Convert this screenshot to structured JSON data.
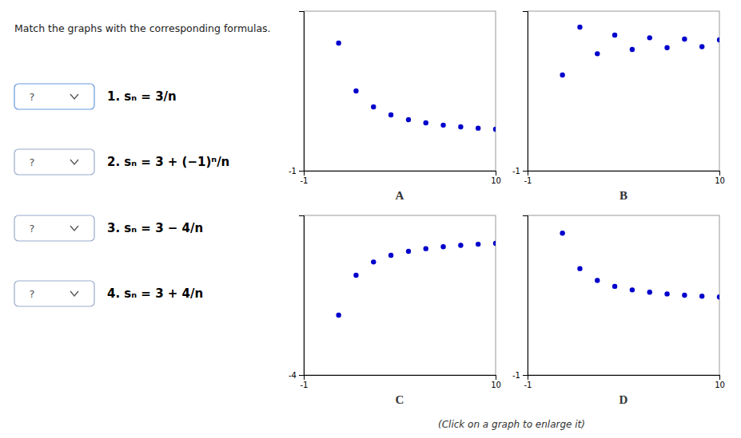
{
  "title": "Match the graphs with the corresponding formulas.",
  "annotations": [
    "1. sₙ = 3/n",
    "2. sₙ = 3 + (−1)ⁿ/n",
    "3. sₙ = 3 − 4/n",
    "4. sₙ = 3 + 4/n"
  ],
  "dropdown_text": "?",
  "caption": "(Click on a graph to enlarge it)",
  "chart_data": [
    {
      "type": "scatter",
      "title": "A",
      "x": [
        1,
        2,
        3,
        4,
        5,
        6,
        7,
        8,
        9,
        10
      ],
      "values": [
        3,
        1.5,
        1,
        0.75,
        0.6,
        0.5,
        0.42857142857142855,
        0.375,
        0.3333333333333333,
        0.3
      ],
      "color": "#0000cc",
      "xlim": [
        -1,
        10
      ],
      "xticks": [
        -1,
        10
      ],
      "ylim": [
        -1,
        4
      ],
      "yticks": [
        -1
      ]
    },
    {
      "type": "scatter",
      "title": "B",
      "x": [
        1,
        2,
        3,
        4,
        5,
        6,
        7,
        8,
        9,
        10
      ],
      "values": [
        2,
        3.5,
        2.6666666666666665,
        3.25,
        2.8,
        3.1666666666666665,
        2.857142857142857,
        3.125,
        2.888888888888889,
        3.1
      ],
      "color": "#0000cc",
      "xlim": [
        -1,
        10
      ],
      "xticks": [
        -1,
        10
      ],
      "ylim": [
        -1,
        4
      ],
      "yticks": [
        -1
      ]
    },
    {
      "type": "scatter",
      "title": "C",
      "x": [
        1,
        2,
        3,
        4,
        5,
        6,
        7,
        8,
        9,
        10
      ],
      "values": [
        -1,
        1,
        1.6666666666666667,
        2,
        2.2,
        2.3333333333333335,
        2.4285714285714284,
        2.5,
        2.5555555555555554,
        2.6
      ],
      "color": "#0000cc",
      "xlim": [
        -1,
        10
      ],
      "xticks": [
        -1,
        10
      ],
      "ylim": [
        -4,
        4
      ],
      "yticks": [
        -4
      ]
    },
    {
      "type": "scatter",
      "title": "D",
      "x": [
        1,
        2,
        3,
        4,
        5,
        6,
        7,
        8,
        9,
        10
      ],
      "values": [
        7,
        5,
        4.333333333333333,
        4,
        3.8,
        3.6666666666666665,
        3.571428571428571,
        3.5,
        3.4444444444444446,
        3.4
      ],
      "color": "#0000cc",
      "xlim": [
        -1,
        10
      ],
      "xticks": [
        -1,
        10
      ],
      "ylim": [
        -1,
        8
      ],
      "yticks": [
        -1
      ]
    }
  ]
}
